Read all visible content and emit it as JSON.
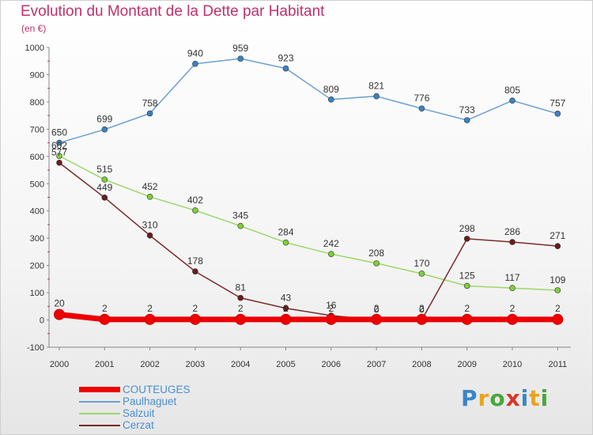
{
  "header": {
    "title": "Evolution du Montant de la Dette par Habitant",
    "unit": "(en €)"
  },
  "logo": {
    "letters": [
      "P",
      "r",
      "o",
      "x",
      "i",
      "t",
      "i"
    ]
  },
  "chart_data": {
    "type": "line",
    "title": "Evolution du Montant de la Dette par Habitant",
    "ylabel": "(en €)",
    "xlabel": "",
    "categories": [
      "2000",
      "2001",
      "2002",
      "2003",
      "2004",
      "2005",
      "2006",
      "2007",
      "2008",
      "2009",
      "2010",
      "2011"
    ],
    "ylim": [
      -100,
      1000
    ],
    "yticks": [
      -100,
      0,
      100,
      200,
      300,
      400,
      500,
      600,
      700,
      800,
      900,
      1000
    ],
    "grid": false,
    "legend_position": "bottom-left",
    "series": [
      {
        "name": "COUTEUGES",
        "color": "#ee0000",
        "values": [
          20,
          2,
          2,
          2,
          2,
          2,
          2,
          2,
          2,
          2,
          2,
          2
        ]
      },
      {
        "name": "Paulhaguet",
        "color": "#6b9fd4",
        "marker": "#3a82c4",
        "values": [
          650,
          699,
          758,
          940,
          959,
          923,
          809,
          821,
          776,
          733,
          805,
          757
        ]
      },
      {
        "name": "Salzuit",
        "color": "#9ad86a",
        "marker": "#7dcf3a",
        "values": [
          602,
          515,
          452,
          402,
          345,
          284,
          242,
          208,
          170,
          125,
          117,
          109
        ]
      },
      {
        "name": "Cerzat",
        "color": "#7a2a2a",
        "marker": "#6a1c1c",
        "values": [
          577,
          449,
          310,
          178,
          81,
          43,
          16,
          0,
          0,
          298,
          286,
          271
        ]
      }
    ]
  }
}
